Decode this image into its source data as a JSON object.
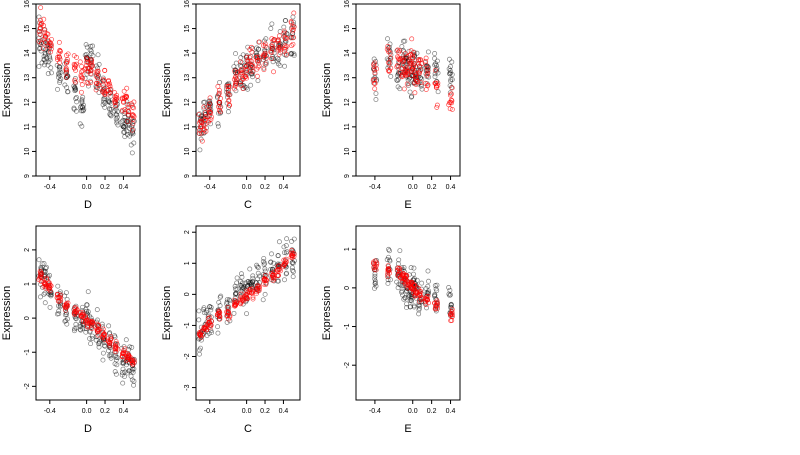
{
  "chart_data": [
    {
      "type": "scatter",
      "xlabel": "D",
      "ylabel": "Expression",
      "xlim": [
        -0.55,
        0.58
      ],
      "ylim": [
        9,
        16
      ],
      "xticks": [
        "-0.4",
        "0.0",
        "0.2",
        "0.4"
      ],
      "yticks": [
        "9",
        "10",
        "11",
        "12",
        "13",
        "14",
        "15",
        "16"
      ],
      "series": [
        {
          "color": "#000000",
          "x": [
            -0.5,
            -0.45,
            -0.4,
            -0.3,
            -0.22,
            -0.12,
            -0.05,
            0.0,
            0.05,
            0.12,
            0.18,
            0.25,
            0.32,
            0.4,
            0.45,
            0.5
          ],
          "y": [
            14.5,
            14.0,
            13.8,
            13.2,
            13.0,
            12.5,
            12.0,
            13.8,
            13.7,
            13.0,
            12.5,
            12.0,
            11.5,
            11.0,
            11.2,
            10.8
          ]
        },
        {
          "color": "#ff0000",
          "x": [
            -0.5,
            -0.45,
            -0.4,
            -0.3,
            -0.22,
            -0.12,
            -0.05,
            0.0,
            0.05,
            0.12,
            0.18,
            0.25,
            0.32,
            0.4,
            0.45,
            0.5
          ],
          "y": [
            15.0,
            14.7,
            14.4,
            14.0,
            13.6,
            13.3,
            13.0,
            13.5,
            13.3,
            13.0,
            12.7,
            12.4,
            12.2,
            12.0,
            11.8,
            11.5
          ]
        }
      ]
    },
    {
      "type": "scatter",
      "xlabel": "C",
      "ylabel": "Expression",
      "xlim": [
        -0.55,
        0.58
      ],
      "ylim": [
        9,
        16
      ],
      "xticks": [
        "-0.4",
        "0.0",
        "0.2",
        "0.4"
      ],
      "yticks": [
        "9",
        "10",
        "11",
        "12",
        "13",
        "14",
        "15",
        "16"
      ],
      "series": [
        {
          "color": "#000000",
          "x": [
            -0.5,
            -0.45,
            -0.4,
            -0.3,
            -0.2,
            -0.12,
            -0.05,
            0.0,
            0.05,
            0.12,
            0.2,
            0.28,
            0.35,
            0.42,
            0.5
          ],
          "y": [
            11.0,
            11.5,
            11.8,
            12.0,
            12.5,
            13.2,
            13.3,
            13.5,
            13.5,
            13.8,
            14.0,
            14.2,
            14.3,
            14.5,
            14.8
          ]
        },
        {
          "color": "#ff0000",
          "x": [
            -0.5,
            -0.45,
            -0.4,
            -0.3,
            -0.2,
            -0.12,
            -0.05,
            0.0,
            0.05,
            0.12,
            0.2,
            0.28,
            0.35,
            0.42,
            0.5
          ],
          "y": [
            11.0,
            11.3,
            11.6,
            12.0,
            12.5,
            13.0,
            13.2,
            13.3,
            13.5,
            13.7,
            14.0,
            14.2,
            14.4,
            14.6,
            14.9
          ]
        }
      ]
    },
    {
      "type": "scatter",
      "xlabel": "E",
      "ylabel": "Expression",
      "xlim": [
        -0.6,
        0.5
      ],
      "ylim": [
        9,
        16
      ],
      "xticks": [
        "-0.4",
        "0.0",
        "0.2",
        "0.4"
      ],
      "yticks": [
        "9",
        "10",
        "11",
        "12",
        "13",
        "14",
        "15",
        "16"
      ],
      "series": [
        {
          "color": "#000000",
          "x": [
            -0.4,
            -0.25,
            -0.15,
            -0.1,
            -0.07,
            -0.03,
            0.0,
            0.03,
            0.08,
            0.15,
            0.25,
            0.4
          ],
          "y": [
            13.0,
            13.5,
            13.2,
            13.8,
            13.5,
            13.0,
            13.4,
            13.2,
            13.0,
            13.3,
            13.5,
            13.2
          ]
        },
        {
          "color": "#ff0000",
          "x": [
            -0.4,
            -0.25,
            -0.15,
            -0.1,
            -0.07,
            -0.03,
            0.0,
            0.03,
            0.08,
            0.15,
            0.25,
            0.4
          ],
          "y": [
            13.2,
            13.6,
            13.8,
            13.5,
            13.2,
            13.6,
            13.8,
            13.0,
            13.3,
            13.1,
            12.6,
            12.0
          ]
        }
      ]
    },
    {
      "type": "scatter",
      "xlabel": "D",
      "ylabel": "Expression",
      "xlim": [
        -0.55,
        0.58
      ],
      "ylim": [
        -2.4,
        2.7
      ],
      "xticks": [
        "-0.4",
        "0.0",
        "0.2",
        "0.4"
      ],
      "yticks": [
        "-2",
        "-1",
        "0",
        "1",
        "2"
      ],
      "series": [
        {
          "color": "#000000",
          "x": [
            -0.5,
            -0.45,
            -0.4,
            -0.3,
            -0.22,
            -0.12,
            -0.05,
            0.0,
            0.05,
            0.12,
            0.18,
            0.25,
            0.32,
            0.4,
            0.45,
            0.5
          ],
          "y": [
            1.3,
            1.0,
            0.9,
            0.5,
            0.3,
            0.0,
            -0.1,
            0.2,
            -0.2,
            -0.4,
            -0.6,
            -0.8,
            -1.0,
            -1.3,
            -1.2,
            -1.4
          ]
        },
        {
          "color": "#ff0000",
          "x": [
            -0.5,
            -0.45,
            -0.4,
            -0.3,
            -0.22,
            -0.12,
            -0.05,
            0.0,
            0.05,
            0.12,
            0.18,
            0.25,
            0.32,
            0.4,
            0.45,
            0.5
          ],
          "y": [
            1.2,
            1.0,
            0.9,
            0.6,
            0.4,
            0.2,
            0.05,
            -0.05,
            -0.15,
            -0.35,
            -0.5,
            -0.7,
            -0.85,
            -1.05,
            -1.15,
            -1.3
          ]
        }
      ]
    },
    {
      "type": "scatter",
      "xlabel": "C",
      "ylabel": "Expression",
      "xlim": [
        -0.55,
        0.58
      ],
      "ylim": [
        -3.4,
        2.2
      ],
      "xticks": [
        "-0.4",
        "0.0",
        "0.2",
        "0.4"
      ],
      "yticks": [
        "-3",
        "-2",
        "-1",
        "0",
        "1",
        "2"
      ],
      "series": [
        {
          "color": "#000000",
          "x": [
            -0.5,
            -0.45,
            -0.4,
            -0.3,
            -0.2,
            -0.12,
            -0.05,
            0.0,
            0.05,
            0.12,
            0.2,
            0.28,
            0.35,
            0.42,
            0.5
          ],
          "y": [
            -1.3,
            -1.1,
            -0.9,
            -0.7,
            -0.5,
            0.0,
            0.1,
            0.2,
            0.3,
            0.5,
            0.6,
            0.8,
            0.9,
            1.1,
            1.3
          ]
        },
        {
          "color": "#ff0000",
          "x": [
            -0.5,
            -0.45,
            -0.4,
            -0.3,
            -0.2,
            -0.12,
            -0.05,
            0.0,
            0.05,
            0.12,
            0.2,
            0.28,
            0.35,
            0.42,
            0.5
          ],
          "y": [
            -1.3,
            -1.1,
            -0.9,
            -0.7,
            -0.6,
            -0.35,
            -0.2,
            -0.1,
            0.05,
            0.2,
            0.45,
            0.6,
            0.8,
            1.0,
            1.25
          ]
        }
      ]
    },
    {
      "type": "scatter",
      "xlabel": "E",
      "ylabel": "Expression",
      "xlim": [
        -0.6,
        0.5
      ],
      "ylim": [
        -2.9,
        1.6
      ],
      "xticks": [
        "-0.4",
        "0.0",
        "0.2",
        "0.4"
      ],
      "yticks": [
        "-2",
        "-1",
        "0",
        "1"
      ],
      "series": [
        {
          "color": "#000000",
          "x": [
            -0.4,
            -0.25,
            -0.15,
            -0.1,
            -0.07,
            -0.03,
            0.0,
            0.03,
            0.08,
            0.15,
            0.25,
            0.4
          ],
          "y": [
            0.3,
            0.5,
            0.4,
            0.2,
            0.0,
            -0.2,
            0.1,
            -0.1,
            -0.3,
            -0.2,
            -0.3,
            -0.5
          ]
        },
        {
          "color": "#ff0000",
          "x": [
            -0.4,
            -0.25,
            -0.15,
            -0.1,
            -0.07,
            -0.03,
            0.0,
            0.03,
            0.08,
            0.15,
            0.25,
            0.4
          ],
          "y": [
            0.6,
            0.45,
            0.35,
            0.3,
            0.2,
            0.1,
            0.0,
            -0.1,
            -0.2,
            -0.3,
            -0.45,
            -0.7
          ]
        }
      ]
    }
  ]
}
